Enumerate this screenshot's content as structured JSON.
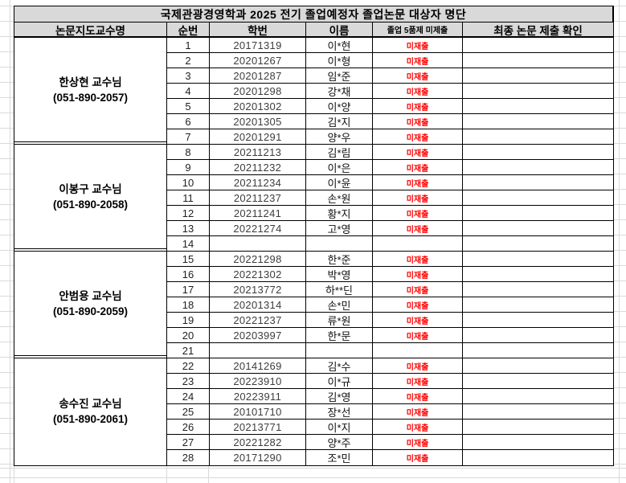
{
  "sheet": {
    "title": "국제관광경영학과 2025 전기 졸업예정자 졸업논문 대상자 명단",
    "columns": [
      "논문지도교수명",
      "순번",
      "학번",
      "이름",
      "졸업 5품제 미제출",
      "최종 논문 제출 확인"
    ],
    "colors": {
      "header_fill": "#d9d9d9",
      "status_red": "#ff0000",
      "error_indicator_green": "#1e9e1e",
      "table_border": "#000000",
      "sheet_gridline": "#dadada"
    },
    "groups": [
      {
        "professor": "한상현 교수님",
        "phone": "(051-890-2057)",
        "rows": [
          {
            "no": "1",
            "student_id": "20171319",
            "name": "이*현",
            "status": "미재출",
            "confirm": ""
          },
          {
            "no": "2",
            "student_id": "20201267",
            "name": "이*형",
            "status": "미재출",
            "confirm": ""
          },
          {
            "no": "3",
            "student_id": "20201287",
            "name": "임*준",
            "status": "미재출",
            "confirm": ""
          },
          {
            "no": "4",
            "student_id": "20201298",
            "name": "강*채",
            "status": "미재출",
            "confirm": ""
          },
          {
            "no": "5",
            "student_id": "20201302",
            "name": "이*양",
            "status": "미재출",
            "confirm": ""
          },
          {
            "no": "6",
            "student_id": "20201305",
            "name": "김*지",
            "status": "미재출",
            "confirm": ""
          },
          {
            "no": "7",
            "student_id": "20201291",
            "name": "양*우",
            "status": "미재출",
            "confirm": ""
          }
        ]
      },
      {
        "professor": "이봉구 교수님",
        "phone": "(051-890-2058)",
        "rows": [
          {
            "no": "8",
            "student_id": "20211213",
            "name": "김*림",
            "status": "미재출",
            "confirm": ""
          },
          {
            "no": "9",
            "student_id": "20211232",
            "name": "이*은",
            "status": "미재출",
            "confirm": ""
          },
          {
            "no": "10",
            "student_id": "20211234",
            "name": "이*윤",
            "status": "미재출",
            "confirm": ""
          },
          {
            "no": "11",
            "student_id": "20211237",
            "name": "손*원",
            "status": "미재출",
            "confirm": ""
          },
          {
            "no": "12",
            "student_id": "20211241",
            "name": "황*지",
            "status": "미재출",
            "confirm": ""
          },
          {
            "no": "13",
            "student_id": "20221274",
            "name": "고*영",
            "status": "미재출",
            "confirm": ""
          },
          {
            "no": "14",
            "student_id": "",
            "name": "",
            "status": "",
            "confirm": ""
          }
        ]
      },
      {
        "professor": "안범용 교수님",
        "phone": "(051-890-2059)",
        "rows": [
          {
            "no": "15",
            "student_id": "20221298",
            "name": "한*준",
            "status": "미재출",
            "confirm": ""
          },
          {
            "no": "16",
            "student_id": "20221302",
            "name": "박*영",
            "status": "미재출",
            "confirm": ""
          },
          {
            "no": "17",
            "student_id": "20213772",
            "name": "하**딘",
            "status": "미재출",
            "confirm": ""
          },
          {
            "no": "18",
            "student_id": "20201314",
            "name": "손*민",
            "status": "미재출",
            "confirm": ""
          },
          {
            "no": "19",
            "student_id": "20221237",
            "name": "류*원",
            "status": "미재출",
            "confirm": ""
          },
          {
            "no": "20",
            "student_id": "20203997",
            "name": "한*문",
            "status": "미재출",
            "confirm": ""
          },
          {
            "no": "21",
            "student_id": "",
            "name": "",
            "status": "",
            "confirm": ""
          }
        ]
      },
      {
        "professor": "송수진 교수님",
        "phone": "(051-890-2061)",
        "rows": [
          {
            "no": "22",
            "student_id": "20141269",
            "name": "김*수",
            "status": "미재출",
            "confirm": ""
          },
          {
            "no": "23",
            "student_id": "20223910",
            "name": "이*규",
            "status": "미재출",
            "confirm": ""
          },
          {
            "no": "24",
            "student_id": "20223911",
            "name": "김*영",
            "status": "미재출",
            "confirm": ""
          },
          {
            "no": "25",
            "student_id": "20101710",
            "name": "장*선",
            "status": "미재출",
            "confirm": ""
          },
          {
            "no": "26",
            "student_id": "20213771",
            "name": "이*지",
            "status": "미재출",
            "confirm": ""
          },
          {
            "no": "27",
            "student_id": "20221282",
            "name": "양*주",
            "status": "미재출",
            "confirm": ""
          },
          {
            "no": "28",
            "student_id": "20171290",
            "name": "조*민",
            "status": "미재출",
            "confirm": ""
          }
        ]
      }
    ]
  }
}
